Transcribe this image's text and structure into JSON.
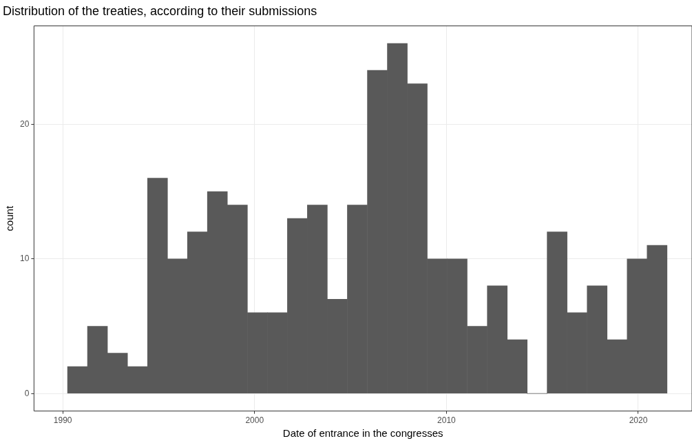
{
  "chart_data": {
    "type": "histogram",
    "title": "Distribution of the treaties, according to their submissions",
    "xlabel": "Date of entrance in the congresses",
    "ylabel": "count",
    "bins": [
      1990.25,
      1991.29,
      1992.33,
      1993.38,
      1994.42,
      1995.46,
      1996.5,
      1997.54,
      1998.58,
      1999.63,
      2000.67,
      2001.71,
      2002.75,
      2003.79,
      2004.83,
      2005.88,
      2006.92,
      2007.96,
      2009.0,
      2010.04,
      2011.08,
      2012.13,
      2013.17,
      2014.21,
      2015.25,
      2016.29,
      2017.33,
      2018.38,
      2019.42,
      2020.46,
      2021.5
    ],
    "values": [
      2,
      5,
      3,
      2,
      16,
      10,
      12,
      15,
      14,
      6,
      6,
      13,
      14,
      7,
      14,
      24,
      26,
      23,
      10,
      10,
      5,
      8,
      4,
      0,
      12,
      6,
      8,
      4,
      10,
      11
    ],
    "color": "#595959",
    "xlim": [
      1988.5,
      2022.8
    ],
    "ylim": [
      -1.3,
      27.3
    ],
    "xticks": [
      1990,
      2000,
      2010,
      2020
    ],
    "yticks": [
      0,
      10,
      20
    ],
    "grid": true,
    "legend": false
  }
}
